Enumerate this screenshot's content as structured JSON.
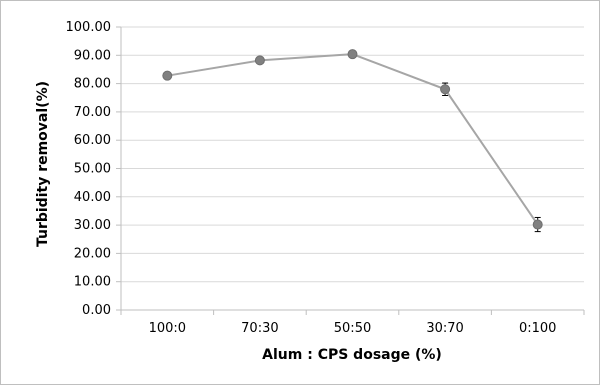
{
  "chart_data": {
    "type": "line",
    "title": "",
    "xlabel": "Alum : CPS dosage (%)",
    "ylabel": "Turbidity removal(%)",
    "categories": [
      "100:0",
      "70:30",
      "50:50",
      "30:70",
      "0:100"
    ],
    "series": [
      {
        "name": "",
        "values": [
          82.8,
          88.2,
          90.4,
          78.0,
          30.2
        ],
        "error": [
          0.6,
          0.7,
          0.9,
          2.2,
          2.5
        ],
        "color": "#a6a6a6",
        "marker_color": "#808080"
      }
    ],
    "ylim": [
      0,
      100
    ],
    "y_ticks": [
      "0.00",
      "10.00",
      "20.00",
      "30.00",
      "40.00",
      "50.00",
      "60.00",
      "70.00",
      "80.00",
      "90.00",
      "100.00"
    ],
    "grid": true,
    "legend": "none",
    "colors": {
      "grid": "#d9d9d9",
      "axis": "#bfbfbf",
      "frame": "#bfbfbf"
    }
  }
}
